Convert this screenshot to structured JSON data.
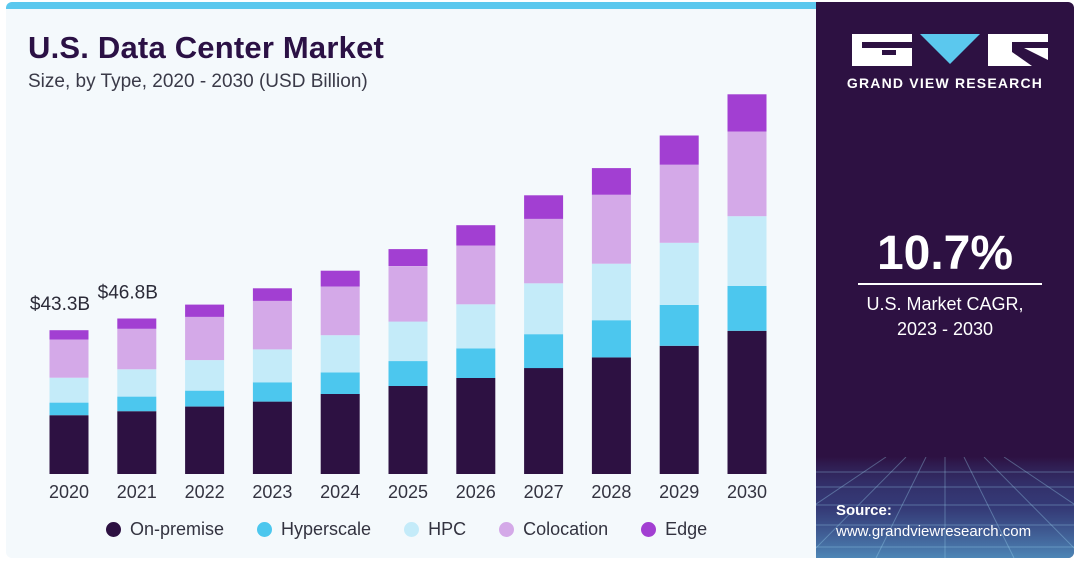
{
  "header": {
    "title": "U.S. Data Center Market",
    "subtitle": "Size, by Type, 2020 - 2030 (USD Billion)"
  },
  "colors": {
    "on_premise": "#2d1142",
    "hyperscale": "#4cc7ee",
    "hpc": "#c4ebf9",
    "colocation": "#d4a9e8",
    "edge": "#a23fd2",
    "panel_bg": "#2d1142",
    "accent": "#5bc8ee"
  },
  "chart_data": {
    "type": "bar",
    "stacked": true,
    "categories": [
      "2020",
      "2021",
      "2022",
      "2023",
      "2024",
      "2025",
      "2026",
      "2027",
      "2028",
      "2029",
      "2030"
    ],
    "series": [
      {
        "name": "On-premise",
        "color": "#2d1142",
        "values": [
          17.7,
          18.9,
          20.3,
          21.8,
          24.1,
          26.5,
          28.9,
          31.9,
          35.1,
          38.6,
          43.1
        ]
      },
      {
        "name": "Hyperscale",
        "color": "#4cc7ee",
        "values": [
          3.8,
          4.4,
          4.8,
          5.8,
          6.5,
          7.5,
          8.9,
          10.2,
          11.2,
          12.3,
          13.5
        ]
      },
      {
        "name": "HPC",
        "color": "#c4ebf9",
        "values": [
          7.5,
          8.2,
          9.2,
          9.9,
          11.2,
          11.9,
          13.3,
          15.3,
          17.0,
          18.7,
          21.0
        ]
      },
      {
        "name": "Colocation",
        "color": "#d4a9e8",
        "values": [
          11.5,
          12.2,
          13.0,
          14.6,
          14.6,
          16.7,
          17.7,
          19.4,
          20.8,
          23.5,
          25.5
        ]
      },
      {
        "name": "Edge",
        "color": "#a23fd2",
        "values": [
          2.8,
          3.1,
          3.7,
          3.8,
          4.8,
          5.1,
          6.1,
          7.1,
          8.0,
          8.8,
          11.2
        ]
      }
    ],
    "data_labels": [
      {
        "category": "2020",
        "text": "$43.3B"
      },
      {
        "category": "2021",
        "text": "$46.8B"
      }
    ],
    "ylim": [
      0,
      115
    ],
    "grid": false,
    "legend": "bottom"
  },
  "legend": {
    "items": [
      {
        "label": "On-premise",
        "color": "#2d1142"
      },
      {
        "label": "Hyperscale",
        "color": "#4cc7ee"
      },
      {
        "label": "HPC",
        "color": "#c4ebf9"
      },
      {
        "label": "Colocation",
        "color": "#d4a9e8"
      },
      {
        "label": "Edge",
        "color": "#a23fd2"
      }
    ]
  },
  "panel": {
    "brand": "GRAND VIEW RESEARCH",
    "logo_icon": "gvr-logo-icon",
    "cagr_value": "10.7%",
    "cagr_label_line1": "U.S. Market CAGR,",
    "cagr_label_line2": "2023 - 2030",
    "source_label": "Source:",
    "source_url": "www.grandviewresearch.com"
  }
}
